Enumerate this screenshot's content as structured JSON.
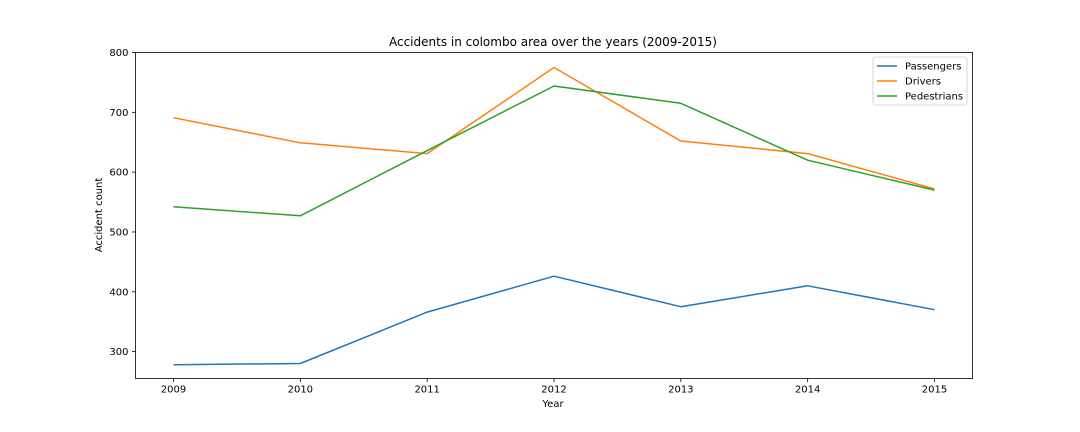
{
  "chart_data": {
    "type": "line",
    "title": "Accidents in colombo area over the years (2009-2015)",
    "xlabel": "Year",
    "ylabel": "Accident count",
    "x": [
      "2009",
      "2010",
      "2011",
      "2012",
      "2013",
      "2014",
      "2015"
    ],
    "yticks": [
      "300",
      "400",
      "500",
      "600",
      "700",
      "800"
    ],
    "ylim": [
      255,
      800
    ],
    "grid": false,
    "legend_position": "top-right",
    "series": [
      {
        "name": "Passengers",
        "color": "#1f77b4",
        "values": [
          278,
          280,
          366,
          426,
          375,
          410,
          370
        ]
      },
      {
        "name": "Drivers",
        "color": "#ff7f0e",
        "values": [
          691,
          649,
          631,
          775,
          652,
          631,
          572
        ]
      },
      {
        "name": "Pedestrians",
        "color": "#2ca02c",
        "values": [
          542,
          527,
          636,
          744,
          715,
          620,
          570
        ]
      }
    ]
  }
}
